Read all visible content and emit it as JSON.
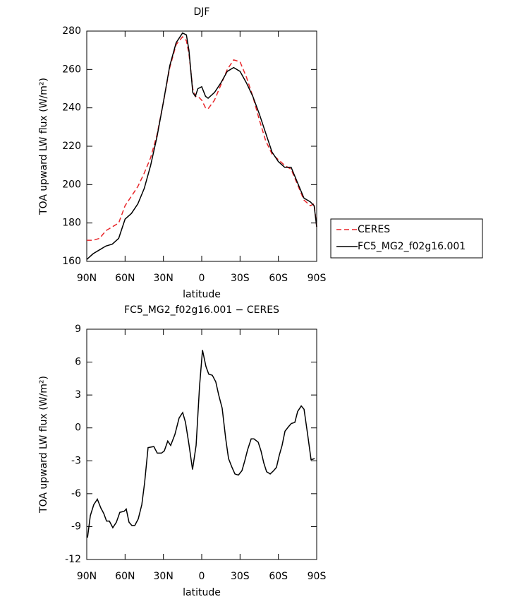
{
  "chart_data": [
    {
      "type": "line",
      "title": "DJF",
      "xlabel": "latitude",
      "ylabel": "TOA upward LW flux (W/m²)",
      "x": [
        90,
        85,
        80,
        75,
        70,
        65,
        60,
        55,
        50,
        45,
        40,
        35,
        30,
        25,
        20,
        15,
        12,
        10,
        7,
        5,
        3,
        0,
        -3,
        -5,
        -10,
        -15,
        -20,
        -25,
        -30,
        -35,
        -40,
        -45,
        -50,
        -55,
        -60,
        -65,
        -70,
        -75,
        -80,
        -85,
        -88,
        -90
      ],
      "series": [
        {
          "name": "CERES",
          "color": "#e8262a",
          "line_style": "dashed",
          "values": [
            171,
            171,
            172,
            176,
            178,
            180,
            189,
            194,
            199,
            206,
            214,
            226,
            243,
            261,
            273,
            277,
            275,
            268,
            250,
            246,
            246,
            244,
            240,
            239.5,
            244,
            252,
            260,
            265,
            264,
            256,
            246,
            234,
            223,
            216,
            213,
            210,
            208,
            200,
            192,
            189,
            190,
            178
          ]
        },
        {
          "name": "FC5_MG2_f02g16.001",
          "color": "#000000",
          "line_style": "solid",
          "values": [
            161,
            164,
            166,
            168,
            169,
            172,
            182,
            185,
            190,
            198,
            210,
            225,
            243,
            262,
            274,
            279,
            278,
            270,
            248,
            246,
            250,
            251,
            246,
            245,
            248,
            253,
            259,
            261,
            259,
            253,
            246,
            237,
            227,
            217,
            212,
            209,
            209,
            201,
            193,
            191,
            189,
            178
          ]
        }
      ],
      "xlim": [
        90,
        -90
      ],
      "xticks": [
        {
          "value": 90,
          "label": "90N"
        },
        {
          "value": 60,
          "label": "60N"
        },
        {
          "value": 30,
          "label": "30N"
        },
        0,
        {
          "value": -30,
          "label": "30S"
        },
        {
          "value": -60,
          "label": "60S"
        },
        {
          "value": -90,
          "label": "90S"
        }
      ],
      "ylim": [
        160,
        280
      ],
      "yticks": [
        160,
        180,
        200,
        220,
        240,
        260,
        280
      ],
      "legend": "right"
    },
    {
      "type": "line",
      "title": "FC5_MG2_f02g16.001 − CERES",
      "xlabel": "latitude",
      "ylabel": "TOA upward LW flux (W/m²)",
      "x": [
        89.4,
        87.2,
        84.5,
        81.7,
        79,
        76.7,
        74.5,
        72.3,
        69.6,
        66.8,
        64.1,
        60.7,
        59.1,
        56.9,
        54.7,
        52.4,
        49.7,
        46.9,
        44.7,
        42,
        37.5,
        34.8,
        31.5,
        29.3,
        26.6,
        24.3,
        21,
        17.7,
        14.9,
        12.7,
        10,
        7.2,
        4.4,
        1.7,
        -0.6,
        -3.3,
        -5.5,
        -8.3,
        -11,
        -13.3,
        -16,
        -18.8,
        -21,
        -23.7,
        -26,
        -28.7,
        -31.5,
        -33.7,
        -35.9,
        -38.7,
        -40.9,
        -44.2,
        -46.4,
        -48.6,
        -50.8,
        -53.6,
        -56.3,
        -58.5,
        -60.7,
        -62.9,
        -65.2,
        -67.9,
        -70.1,
        -72.9,
        -75.1,
        -77.9,
        -80.1,
        -82.8,
        -85.6,
        -88.4
      ],
      "series": [
        {
          "name": "FC5_MG2_f02g16.001 − CERES",
          "color": "#000000",
          "line_style": "solid",
          "values": [
            -10,
            -8,
            -7,
            -6.5,
            -7.3,
            -7.8,
            -8.5,
            -8.5,
            -9.1,
            -8.6,
            -7.7,
            -7.6,
            -7.4,
            -8.6,
            -8.9,
            -8.9,
            -8.3,
            -7,
            -5,
            -1.8,
            -1.7,
            -2.3,
            -2.3,
            -2.1,
            -1.2,
            -1.6,
            -0.6,
            0.9,
            1.4,
            0.5,
            -1.5,
            -3.8,
            -1.6,
            3.8,
            7.1,
            5.6,
            4.9,
            4.8,
            4.2,
            3,
            1.8,
            -1,
            -2.8,
            -3.6,
            -4.2,
            -4.3,
            -3.9,
            -3,
            -2,
            -1,
            -1,
            -1.3,
            -2.1,
            -3.2,
            -4,
            -4.2,
            -3.9,
            -3.6,
            -2.5,
            -1.6,
            -0.3,
            0.1,
            0.4,
            0.5,
            1.5,
            2,
            1.7,
            -0.5,
            -2.9,
            -2.8
          ]
        }
      ],
      "xlim": [
        90,
        -90
      ],
      "xticks": [
        {
          "value": 90,
          "label": "90N"
        },
        {
          "value": 60,
          "label": "60N"
        },
        {
          "value": 30,
          "label": "30N"
        },
        0,
        {
          "value": -30,
          "label": "30S"
        },
        {
          "value": -60,
          "label": "60S"
        },
        {
          "value": -90,
          "label": "90S"
        }
      ],
      "ylim": [
        -12,
        9
      ],
      "yticks": [
        -12,
        -9,
        -6,
        -3,
        0,
        3,
        6,
        9
      ]
    }
  ]
}
